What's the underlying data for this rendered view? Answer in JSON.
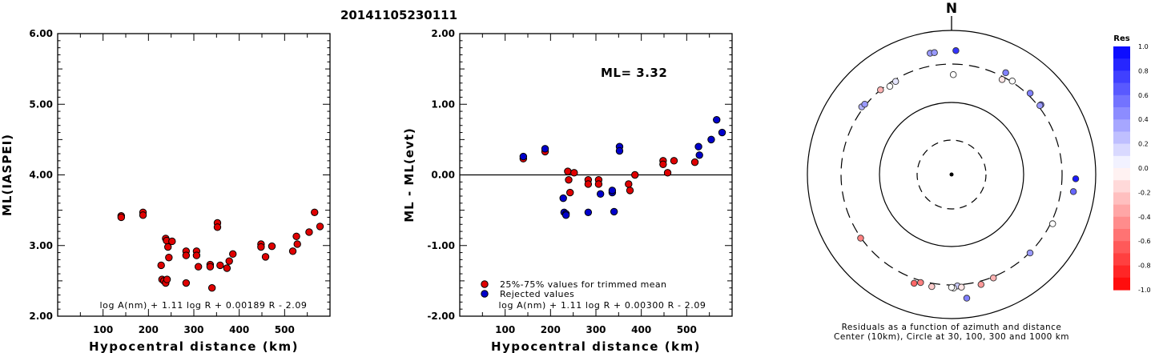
{
  "title": "20141105230111",
  "chart_data": [
    {
      "type": "scatter",
      "ylabel": "ML(IASPEI)",
      "xlabel": "Hypocentral distance (km)",
      "xlim": [
        0,
        600
      ],
      "ylim": [
        2.0,
        6.0
      ],
      "xticks": [
        "100",
        "200",
        "300",
        "400",
        "500"
      ],
      "yticks": [
        "2.00",
        "3.00",
        "4.00",
        "5.00",
        "6.00"
      ],
      "formula": "log A(nm) + 1.11 log R + 0.00189 R - 2.09",
      "points": [
        [
          140,
          3.42
        ],
        [
          140,
          3.4
        ],
        [
          188,
          3.47
        ],
        [
          188,
          3.43
        ],
        [
          228,
          2.72
        ],
        [
          230,
          2.52
        ],
        [
          234,
          2.5
        ],
        [
          238,
          3.1
        ],
        [
          238,
          2.47
        ],
        [
          240,
          3.07
        ],
        [
          241,
          2.52
        ],
        [
          243,
          2.98
        ],
        [
          245,
          2.83
        ],
        [
          252,
          3.06
        ],
        [
          283,
          2.92
        ],
        [
          283,
          2.86
        ],
        [
          283,
          2.47
        ],
        [
          306,
          2.92
        ],
        [
          306,
          2.86
        ],
        [
          310,
          2.7
        ],
        [
          336,
          2.73
        ],
        [
          336,
          2.7
        ],
        [
          340,
          2.4
        ],
        [
          352,
          3.32
        ],
        [
          352,
          3.26
        ],
        [
          358,
          2.72
        ],
        [
          373,
          2.68
        ],
        [
          378,
          2.78
        ],
        [
          386,
          2.88
        ],
        [
          448,
          3.02
        ],
        [
          448,
          2.98
        ],
        [
          458,
          2.84
        ],
        [
          472,
          2.99
        ],
        [
          518,
          2.92
        ],
        [
          526,
          3.13
        ],
        [
          528,
          3.02
        ],
        [
          554,
          3.19
        ],
        [
          566,
          3.47
        ],
        [
          578,
          3.27
        ]
      ]
    },
    {
      "type": "scatter",
      "ylabel": "ML - ML(evt)",
      "xlabel": "Hypocentral distance (km)",
      "xlim": [
        0,
        600
      ],
      "ylim": [
        -2.0,
        2.0
      ],
      "xticks": [
        "100",
        "200",
        "300",
        "400",
        "500"
      ],
      "yticks": [
        "-2.00",
        "-1.00",
        "0.00",
        "1.00",
        "2.00"
      ],
      "annotation": "ML= 3.32",
      "formula": "log A(nm) + 1.11 log R + 0.00300 R - 2.09",
      "legend": [
        {
          "label": "25%-75% values for trimmed mean",
          "color": "#e00000"
        },
        {
          "label": "Rejected values",
          "color": "#0000cc"
        }
      ],
      "series": [
        {
          "name": "25%-75% values for trimmed mean",
          "color": "#e00000",
          "points": [
            [
              140,
              0.23
            ],
            [
              188,
              0.33
            ],
            [
              238,
              0.05
            ],
            [
              240,
              -0.07
            ],
            [
              243,
              -0.25
            ],
            [
              252,
              0.03
            ],
            [
              283,
              -0.07
            ],
            [
              283,
              -0.13
            ],
            [
              306,
              -0.07
            ],
            [
              306,
              -0.13
            ],
            [
              372,
              -0.13
            ],
            [
              375,
              -0.22
            ],
            [
              386,
              0.0
            ],
            [
              448,
              0.2
            ],
            [
              448,
              0.15
            ],
            [
              458,
              0.03
            ],
            [
              472,
              0.2
            ],
            [
              518,
              0.18
            ]
          ]
        },
        {
          "name": "Rejected values",
          "color": "#0000cc",
          "points": [
            [
              140,
              0.26
            ],
            [
              188,
              0.37
            ],
            [
              228,
              -0.33
            ],
            [
              230,
              -0.53
            ],
            [
              234,
              -0.55
            ],
            [
              234,
              -0.57
            ],
            [
              283,
              -0.53
            ],
            [
              310,
              -0.27
            ],
            [
              336,
              -0.25
            ],
            [
              336,
              -0.22
            ],
            [
              340,
              -0.52
            ],
            [
              352,
              0.4
            ],
            [
              352,
              0.34
            ],
            [
              526,
              0.4
            ],
            [
              528,
              0.28
            ],
            [
              554,
              0.5
            ],
            [
              566,
              0.78
            ],
            [
              578,
              0.6
            ]
          ]
        }
      ]
    },
    {
      "type": "scatter",
      "north_label": "N",
      "caption_line1": "Residuals as a function of azimuth and distance",
      "caption_line2": "Center (10km), Circle at 30, 100, 300 and 1000 km",
      "colorbar_title": "Res",
      "colorbar_ticks": [
        "1.0",
        "0.8",
        "0.6",
        "0.4",
        "0.2",
        "0.0",
        "-0.2",
        "-0.4",
        "-0.6",
        "-0.8",
        "-1.0"
      ],
      "rings_km": [
        10,
        30,
        100,
        300,
        1000
      ],
      "stations": [
        {
          "az": -10,
          "dist": 563,
          "res": 0.4
        },
        {
          "az": -8,
          "dist": 563,
          "res": 0.4
        },
        {
          "az": 2,
          "dist": 580,
          "res": 0.8
        },
        {
          "az": -40,
          "dist": 300,
          "res": -0.3
        },
        {
          "az": -35,
          "dist": 285,
          "res": 0.0
        },
        {
          "az": -31,
          "dist": 290,
          "res": 0.1
        },
        {
          "az": 1,
          "dist": 245,
          "res": 0.0
        },
        {
          "az": 28,
          "dist": 285,
          "res": -0.1
        },
        {
          "az": 33,
          "dist": 320,
          "res": 0.0
        },
        {
          "az": 28,
          "dist": 400,
          "res": 0.5
        },
        {
          "az": 44,
          "dist": 353,
          "res": 0.5
        },
        {
          "az": 52,
          "dist": 360,
          "res": 0.6
        },
        {
          "az": 52,
          "dist": 333,
          "res": 0.4
        },
        {
          "az": -53,
          "dist": 340,
          "res": 0.3
        },
        {
          "az": -51,
          "dist": 325,
          "res": 0.4
        },
        {
          "az": 92,
          "dist": 585,
          "res": 0.9
        },
        {
          "az": 98,
          "dist": 560,
          "res": 0.6
        },
        {
          "az": 116,
          "dist": 340,
          "res": 0.0
        },
        {
          "az": 135,
          "dist": 310,
          "res": 0.4
        },
        {
          "az": 158,
          "dist": 323,
          "res": -0.3
        },
        {
          "az": 177,
          "dist": 323,
          "res": 0.2
        },
        {
          "az": 179,
          "dist": 365,
          "res": 0.0
        },
        {
          "az": -180,
          "dist": 350,
          "res": 0.0
        },
        {
          "az": 175,
          "dist": 355,
          "res": -0.1
        },
        {
          "az": 165,
          "dist": 370,
          "res": -0.4
        },
        {
          "az": -170,
          "dist": 370,
          "res": -0.2
        },
        {
          "az": -164,
          "dist": 340,
          "res": -0.5
        },
        {
          "az": -161,
          "dist": 395,
          "res": -0.6
        },
        {
          "az": -125,
          "dist": 310,
          "res": -0.5
        },
        {
          "az": 173,
          "dist": 595,
          "res": 0.5
        }
      ]
    }
  ]
}
